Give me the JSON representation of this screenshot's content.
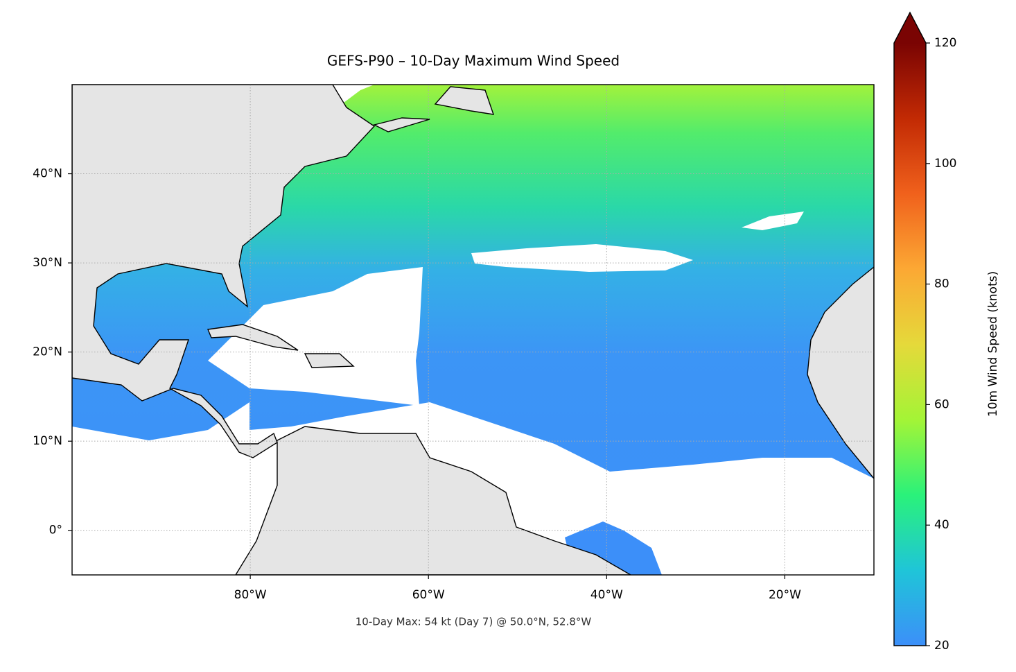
{
  "chart_data": {
    "type": "map",
    "title": "GEFS-P90 – 10-Day Maximum Wind Speed",
    "annotation": "10-Day Max: 54 kt (Day 7) @ 50.0°N, 52.8°W",
    "xlim": [
      -100,
      -10
    ],
    "ylim": [
      -5,
      50
    ],
    "xticks": [
      {
        "value": -80,
        "label": "80°W"
      },
      {
        "value": -60,
        "label": "60°W"
      },
      {
        "value": -40,
        "label": "40°W"
      },
      {
        "value": -20,
        "label": "20°W"
      }
    ],
    "yticks": [
      {
        "value": 0,
        "label": "0°"
      },
      {
        "value": 10,
        "label": "10°N"
      },
      {
        "value": 20,
        "label": "20°N"
      },
      {
        "value": 30,
        "label": "30°N"
      },
      {
        "value": 40,
        "label": "40°N"
      }
    ],
    "grid": true,
    "colorbar": {
      "label": "10m Wind Speed (knots)",
      "lim": [
        20,
        120
      ],
      "ticks": [
        20,
        40,
        60,
        80,
        100,
        120
      ],
      "extend": "max",
      "colors": [
        "#3c8ff9",
        "#1fc5d8",
        "#2af27a",
        "#a4f436",
        "#e5d93a",
        "#fca834",
        "#f0611c",
        "#c22a04",
        "#7a0403"
      ]
    }
  }
}
